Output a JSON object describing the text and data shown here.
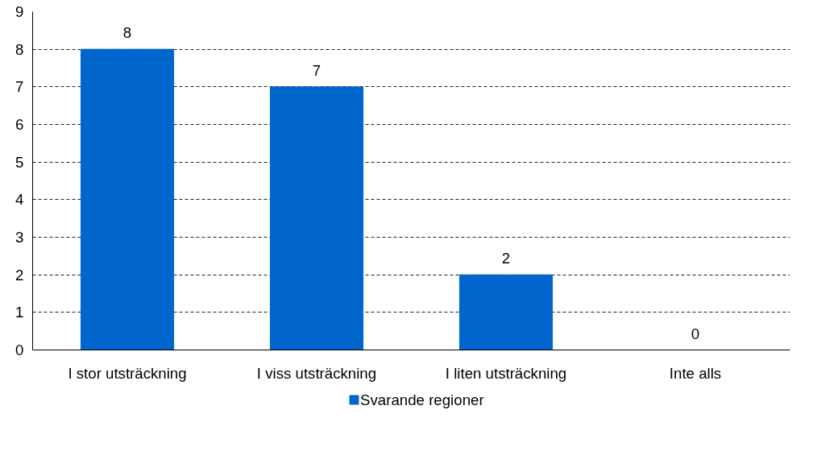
{
  "chart_data": {
    "type": "bar",
    "categories": [
      "I stor utsträckning",
      "I viss utsträckning",
      "I liten utsträckning",
      "Inte alls"
    ],
    "series": [
      {
        "name": "Svarande regioner",
        "color": "#0066cc",
        "values": [
          8,
          7,
          2,
          0
        ]
      }
    ],
    "ylim": [
      0,
      9
    ],
    "yticks": [
      0,
      1,
      2,
      3,
      4,
      5,
      6,
      7,
      8,
      9
    ],
    "grid": "y",
    "legend": "bottom",
    "data_labels": true
  }
}
